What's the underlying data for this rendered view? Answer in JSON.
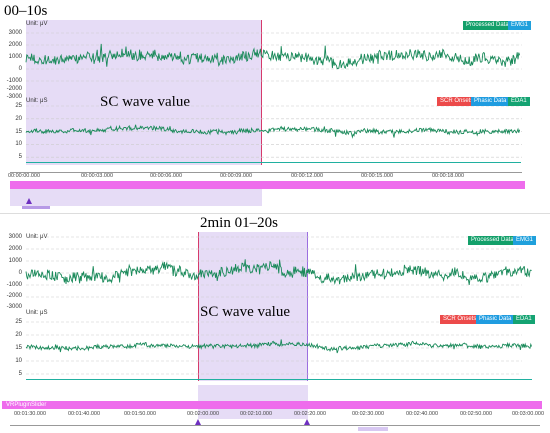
{
  "colors": {
    "signal": "#1a8a5a",
    "selection": "#e6dcf6",
    "selection_edge": "#b79ae6",
    "cursor": "#d63a6a",
    "timeline_bar": "#ee6cec",
    "emg_badge": "#1fa0dc",
    "processed_badge": "#13a06a",
    "scr_badge": "#ec4a4a",
    "phasic_badge": "#1f9ce0",
    "eda_badge": "#14a372",
    "baseline": "#20b0a0"
  },
  "section1": {
    "title": "00–10s",
    "emg": {
      "unit": "Unit: μV",
      "ticks": [
        "3000",
        "2000",
        "1000",
        "0",
        "-1000",
        "-2000",
        "-3000"
      ],
      "legend": {
        "processed": "Processed Data",
        "emg": "EMG1"
      }
    },
    "eda": {
      "unit": "Unit: μS",
      "wave_label": "SC wave value",
      "ticks": [
        "25",
        "20",
        "15",
        "10",
        "5"
      ],
      "legend": {
        "scr": "SCR Onsets",
        "phasic": "Phasic Data",
        "eda": "EDA1"
      }
    },
    "timeline": {
      "labels": [
        "00:00:00.000",
        "00:00:03.000",
        "00:00:06.000",
        "00:00:09.000",
        "00:00:12.000",
        "00:00:15.000",
        "00:00:18.000"
      ]
    }
  },
  "section2": {
    "title": "2min 01–20s",
    "emg": {
      "unit": "Unit: μV",
      "ticks": [
        "3000",
        "2000",
        "1000",
        "0",
        "-1000",
        "-2000",
        "-3000"
      ],
      "legend": {
        "processed": "Processed Data",
        "emg": "EMG1"
      }
    },
    "eda": {
      "unit": "Unit: μS",
      "wave_label": "SC wave value",
      "ticks": [
        "25",
        "20",
        "15",
        "10",
        "5"
      ],
      "legend": {
        "scr": "SCR Onsets",
        "phasic": "Phasic Data",
        "eda": "EDA1"
      }
    },
    "timeline": {
      "slider_label": "VRPluginSlider",
      "labels": [
        "00:01:30.000",
        "00:01:40.000",
        "00:01:50.000",
        "00:02:00.000",
        "00:02:10.000",
        "00:02:20.000",
        "00:02:30.000",
        "00:02:40.000",
        "00:02:50.000",
        "00:03:00.000"
      ]
    }
  }
}
